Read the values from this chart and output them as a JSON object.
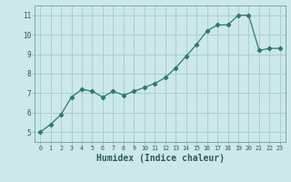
{
  "x": [
    0,
    1,
    2,
    3,
    4,
    5,
    6,
    7,
    8,
    9,
    10,
    11,
    12,
    13,
    14,
    15,
    16,
    17,
    18,
    19,
    20,
    21,
    22,
    23
  ],
  "y": [
    5.0,
    5.4,
    5.9,
    6.8,
    7.2,
    7.1,
    6.8,
    7.1,
    6.9,
    7.1,
    7.3,
    7.5,
    7.8,
    8.3,
    8.9,
    9.5,
    10.2,
    10.5,
    10.5,
    11.0,
    11.0,
    9.2,
    9.3,
    9.3
  ],
  "line_color": "#2d7a6e",
  "marker": "D",
  "marker_size": 2.2,
  "line_width": 0.9,
  "bg_color": "#cce8e8",
  "grid_color": "#aacfcf",
  "xlabel": "Humidex (Indice chaleur)",
  "xlabel_fontsize": 7,
  "ylim": [
    4.5,
    11.5
  ],
  "xlim": [
    -0.5,
    23.5
  ],
  "yticks": [
    5,
    6,
    7,
    8,
    9,
    10,
    11
  ],
  "xticks": [
    0,
    1,
    2,
    3,
    4,
    5,
    6,
    7,
    8,
    9,
    10,
    11,
    12,
    13,
    14,
    15,
    16,
    17,
    18,
    19,
    20,
    21,
    22,
    23
  ]
}
